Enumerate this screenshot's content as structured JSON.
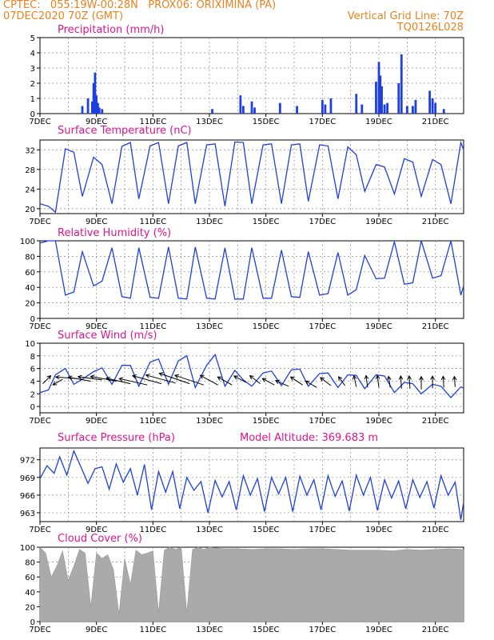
{
  "header": {
    "line1": "CPTEC:   055:19W-00:28N   PROX06: ORIXIMINA (PA)",
    "line2_left": "07DEC2020 70Z (GMT)",
    "line2_right": "Vertical Grid Line: 70Z",
    "line3_right": "TQ0126L028"
  },
  "colors": {
    "header": "#e8821e",
    "title": "#e0148c",
    "series": "#1f3fe0",
    "cloud": "#aaaaaa",
    "arrow": "#000000"
  },
  "chart_data": [
    {
      "type": "bar",
      "title": "Precipitation (mm/h)",
      "ylim": [
        0,
        5
      ],
      "yticks": [
        0,
        1,
        2,
        3,
        4,
        5
      ],
      "xlim": [
        7,
        22
      ],
      "xticks": [
        "7DEC",
        "9DEC",
        "11DEC",
        "13DEC",
        "15DEC",
        "17DEC",
        "19DEC",
        "21DEC"
      ],
      "series": [
        {
          "x": [
            8.5,
            8.7,
            8.85,
            8.9,
            8.95,
            9.0,
            9.05,
            9.1,
            9.2,
            13.1,
            14.1,
            14.2,
            14.5,
            14.6,
            15.5,
            16.1,
            17.0,
            17.1,
            17.3,
            18.2,
            18.4,
            18.9,
            19.0,
            19.05,
            19.1,
            19.2,
            19.3,
            19.7,
            19.8,
            20.0,
            20.2,
            20.3,
            20.8,
            20.9,
            21.0,
            21.3
          ],
          "values": [
            0.5,
            1.0,
            0.8,
            2.0,
            2.7,
            1.2,
            0.7,
            0.4,
            0.3,
            0.3,
            1.2,
            0.5,
            0.8,
            0.4,
            0.7,
            0.5,
            0.9,
            0.6,
            1.0,
            1.3,
            0.6,
            2.1,
            3.4,
            2.5,
            1.8,
            0.6,
            0.7,
            2.0,
            3.9,
            0.5,
            0.5,
            0.9,
            1.5,
            1.0,
            0.7,
            0.3
          ]
        }
      ]
    },
    {
      "type": "line",
      "title": "Surface Temperature (nC)",
      "ylim": [
        19,
        34
      ],
      "yticks": [
        20,
        24,
        28,
        32
      ],
      "xlim": [
        7,
        22
      ],
      "xticks": [
        "7DEC",
        "9DEC",
        "11DEC",
        "13DEC",
        "15DEC",
        "17DEC",
        "19DEC",
        "21DEC"
      ],
      "series": [
        {
          "x": [
            7.0,
            7.3,
            7.55,
            7.9,
            8.2,
            8.5,
            8.9,
            9.2,
            9.55,
            9.9,
            10.2,
            10.5,
            10.9,
            11.2,
            11.55,
            11.9,
            12.2,
            12.5,
            12.9,
            13.2,
            13.55,
            13.9,
            14.2,
            14.5,
            14.9,
            15.2,
            15.55,
            15.9,
            16.2,
            16.5,
            16.9,
            17.2,
            17.55,
            17.9,
            18.2,
            18.5,
            18.9,
            19.2,
            19.55,
            19.9,
            20.2,
            20.5,
            20.9,
            21.2,
            21.55,
            21.9,
            22.0
          ],
          "values": [
            21.0,
            20.5,
            19.3,
            32.2,
            31.5,
            22.5,
            30.5,
            29.0,
            21.0,
            32.7,
            33.5,
            22.0,
            32.8,
            33.5,
            21.0,
            32.8,
            33.5,
            21.0,
            33.0,
            33.2,
            20.5,
            33.6,
            33.5,
            21.0,
            33.0,
            33.2,
            21.0,
            33.0,
            33.2,
            21.5,
            33.0,
            32.8,
            22.0,
            32.6,
            31.0,
            23.5,
            29.0,
            28.5,
            23.0,
            30.2,
            29.5,
            22.5,
            30.0,
            29.0,
            21.0,
            33.5,
            32.0
          ]
        }
      ]
    },
    {
      "type": "line",
      "title": "Relative Humidity (%)",
      "ylim": [
        0,
        100
      ],
      "yticks": [
        0,
        20,
        40,
        60,
        80,
        100
      ],
      "xlim": [
        7,
        22
      ],
      "xticks": [
        "7DEC",
        "9DEC",
        "11DEC",
        "13DEC",
        "15DEC",
        "17DEC",
        "19DEC",
        "21DEC"
      ],
      "series": [
        {
          "x": [
            7.0,
            7.3,
            7.55,
            7.9,
            8.2,
            8.5,
            8.9,
            9.2,
            9.55,
            9.9,
            10.2,
            10.5,
            10.9,
            11.2,
            11.55,
            11.9,
            12.2,
            12.5,
            12.9,
            13.2,
            13.55,
            13.9,
            14.2,
            14.5,
            14.9,
            15.2,
            15.55,
            15.9,
            16.2,
            16.5,
            16.9,
            17.2,
            17.55,
            17.9,
            18.2,
            18.5,
            18.9,
            19.2,
            19.55,
            19.9,
            20.2,
            20.5,
            20.9,
            21.2,
            21.55,
            21.9,
            22.0
          ],
          "values": [
            97.0,
            100.0,
            100.0,
            30.0,
            34.0,
            86.0,
            42.0,
            48.0,
            91.0,
            28.0,
            26.0,
            91.0,
            27.0,
            26.0,
            92.0,
            26.0,
            25.0,
            92.0,
            26.0,
            25.0,
            91.0,
            25.0,
            25.0,
            91.0,
            26.0,
            26.0,
            88.0,
            28.0,
            27.0,
            86.0,
            30.0,
            32.0,
            85.0,
            30.0,
            37.0,
            81.0,
            51.0,
            52.0,
            99.0,
            44.0,
            46.0,
            100.0,
            52.0,
            55.0,
            100.0,
            30.0,
            42.0
          ]
        }
      ]
    },
    {
      "type": "line",
      "title": "Surface Wind (m/s)",
      "ylim": [
        -1,
        10
      ],
      "yticks": [
        0,
        2,
        4,
        6,
        8,
        10
      ],
      "xlim": [
        7,
        22
      ],
      "xticks": [
        "7DEC",
        "9DEC",
        "11DEC",
        "13DEC",
        "15DEC",
        "17DEC",
        "19DEC",
        "21DEC"
      ],
      "series": [
        {
          "x": [
            7.0,
            7.3,
            7.55,
            7.9,
            8.2,
            8.5,
            8.9,
            9.2,
            9.55,
            9.9,
            10.2,
            10.5,
            10.9,
            11.2,
            11.55,
            11.9,
            12.2,
            12.5,
            12.9,
            13.2,
            13.55,
            13.9,
            14.2,
            14.5,
            14.9,
            15.2,
            15.55,
            15.9,
            16.2,
            16.5,
            16.9,
            17.2,
            17.55,
            17.9,
            18.2,
            18.5,
            18.9,
            19.2,
            19.55,
            19.9,
            20.2,
            20.5,
            20.9,
            21.2,
            21.55,
            21.9,
            22.0
          ],
          "values": [
            2.2,
            2.6,
            5.0,
            6.0,
            3.5,
            4.3,
            5.5,
            6.1,
            3.5,
            6.5,
            6.5,
            3.2,
            7.0,
            7.5,
            3.5,
            7.2,
            8.0,
            3.0,
            6.5,
            8.2,
            3.2,
            5.7,
            4.2,
            3.2,
            5.3,
            5.6,
            3.3,
            5.8,
            5.9,
            3.2,
            5.2,
            5.3,
            3.0,
            5.0,
            4.9,
            2.8,
            5.0,
            4.8,
            2.2,
            3.8,
            3.6,
            2.0,
            3.5,
            3.2,
            1.4,
            3.1,
            2.9
          ]
        }
      ],
      "arrows_x": [
        7.1,
        7.8,
        8.3,
        8.8,
        9.2,
        9.7,
        10.2,
        10.8,
        11.3,
        11.8,
        12.3,
        12.8,
        13.3,
        13.8,
        14.3,
        14.8,
        15.3,
        15.8,
        16.3,
        16.8,
        17.3,
        17.8,
        18.2,
        18.6,
        19.0,
        19.4,
        19.8,
        20.1,
        20.5,
        20.9,
        21.3,
        21.7
      ],
      "arrows_y": [
        3.6,
        4.3,
        4.4,
        4.0,
        4.2,
        4.0,
        3.6,
        3.4,
        3.6,
        3.7,
        3.6,
        3.4,
        3.4,
        3.4,
        3.8,
        3.6,
        3.4,
        3.2,
        3.4,
        3.0,
        3.3,
        3.3,
        3.1,
        3.0,
        3.0,
        3.0,
        2.8,
        2.8,
        2.7,
        2.9,
        3.0,
        3.1
      ],
      "arrows_u": [
        -1.0,
        1.2,
        2.6,
        2.8,
        3.0,
        3.2,
        3.0,
        3.5,
        3.6,
        3.7,
        3.8,
        3.6,
        2.2,
        1.8,
        1.5,
        1.3,
        1.5,
        1.6,
        1.5,
        1.4,
        1.3,
        0.8,
        0.3,
        0.2,
        0.2,
        0.2,
        0.1,
        0.1,
        0.0,
        0.0,
        0.1,
        0.1
      ],
      "arrows_v": [
        1.0,
        -0.7,
        0.2,
        0.5,
        0.4,
        0.6,
        0.7,
        0.8,
        1.0,
        1.0,
        1.3,
        1.2,
        1.2,
        1.0,
        0.8,
        1.0,
        0.8,
        0.7,
        1.0,
        0.8,
        1.0,
        1.1,
        1.4,
        1.5,
        1.5,
        1.4,
        1.6,
        1.6,
        1.6,
        1.5,
        1.4,
        1.3
      ]
    },
    {
      "type": "line",
      "title": "Surface Pressure (hPa)",
      "annotation": "Model Altitude: 369.683 m",
      "ylim": [
        961.5,
        974
      ],
      "yticks": [
        963,
        966,
        969,
        972
      ],
      "xlim": [
        7,
        22
      ],
      "xticks": [
        "7DEC",
        "9DEC",
        "11DEC",
        "13DEC",
        "15DEC",
        "17DEC",
        "19DEC",
        "21DEC"
      ],
      "series": [
        {
          "x": [
            7.0,
            7.25,
            7.5,
            7.7,
            7.95,
            8.2,
            8.45,
            8.7,
            8.95,
            9.2,
            9.45,
            9.7,
            9.95,
            10.2,
            10.45,
            10.7,
            10.95,
            11.2,
            11.45,
            11.7,
            11.95,
            12.2,
            12.45,
            12.7,
            12.95,
            13.2,
            13.45,
            13.7,
            13.95,
            14.2,
            14.45,
            14.7,
            14.95,
            15.2,
            15.45,
            15.7,
            15.95,
            16.2,
            16.45,
            16.7,
            16.95,
            17.2,
            17.45,
            17.7,
            17.95,
            18.2,
            18.45,
            18.7,
            18.95,
            19.2,
            19.45,
            19.7,
            19.95,
            20.2,
            20.45,
            20.7,
            20.95,
            21.2,
            21.45,
            21.7,
            21.9,
            22.0
          ],
          "values": [
            968.8,
            971.0,
            969.7,
            972.5,
            969.4,
            973.5,
            970.8,
            968.0,
            970.5,
            970.8,
            967.0,
            971.3,
            968.2,
            970.5,
            966.0,
            971.2,
            963.5,
            970.0,
            966.5,
            970.0,
            963.7,
            969.0,
            966.8,
            968.3,
            963.0,
            968.5,
            965.7,
            968.3,
            963.5,
            969.3,
            966.0,
            968.8,
            963.2,
            969.0,
            966.2,
            969.0,
            963.2,
            969.2,
            966.0,
            968.6,
            963.5,
            969.3,
            965.8,
            968.4,
            963.3,
            969.4,
            966.0,
            969.0,
            963.4,
            968.6,
            965.5,
            968.4,
            963.7,
            968.6,
            965.6,
            968.3,
            963.8,
            969.3,
            966.0,
            968.2,
            961.8,
            964.8
          ]
        }
      ]
    },
    {
      "type": "area",
      "title": "Cloud Cover (%)",
      "ylim": [
        0,
        100
      ],
      "yticks": [
        0,
        20,
        40,
        60,
        80,
        100
      ],
      "xlim": [
        7,
        22
      ],
      "xticks": [
        "7DEC",
        "9DEC",
        "11DEC",
        "13DEC",
        "15DEC",
        "17DEC",
        "19DEC",
        "21DEC"
      ],
      "series": [
        {
          "x": [
            7.0,
            7.2,
            7.4,
            7.6,
            7.8,
            8.0,
            8.2,
            8.4,
            8.6,
            8.8,
            9.0,
            9.2,
            9.4,
            9.6,
            9.8,
            10.0,
            10.2,
            10.4,
            10.6,
            10.8,
            11.0,
            11.2,
            11.4,
            11.6,
            11.8,
            12.0,
            12.2,
            12.4,
            12.6,
            12.8,
            13.0,
            13.5,
            14.0,
            14.5,
            15.0,
            15.5,
            16.0,
            16.5,
            17.0,
            17.5,
            18.0,
            18.5,
            19.0,
            19.5,
            20.0,
            20.5,
            21.0,
            21.5,
            22.0
          ],
          "values": [
            100,
            92,
            60,
            75,
            95,
            55,
            75,
            97,
            92,
            20,
            92,
            85,
            90,
            70,
            10,
            85,
            50,
            96,
            90,
            92,
            95,
            12,
            96,
            100,
            97,
            100,
            12,
            97,
            100,
            97,
            100,
            98,
            98,
            97,
            98,
            98,
            97,
            98,
            98,
            97,
            96,
            96,
            96,
            95,
            97,
            96,
            97,
            98,
            97
          ]
        }
      ]
    }
  ]
}
